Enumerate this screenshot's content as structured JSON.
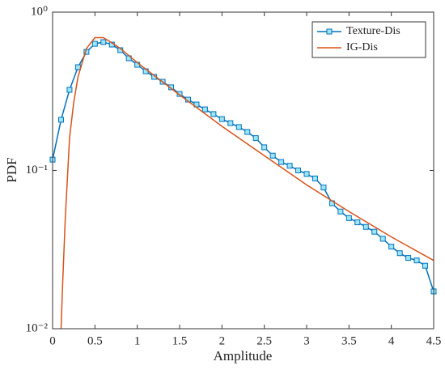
{
  "chart_data": {
    "type": "line",
    "xlabel": "Amplitude",
    "ylabel": "PDF",
    "log_y": true,
    "grid": false,
    "legend": "upper right",
    "xlim": [
      0,
      4.5
    ],
    "xticks": [
      0,
      0.5,
      1,
      1.5,
      2,
      2.5,
      3,
      3.5,
      4,
      4.5
    ],
    "ylim": [
      0.01,
      1
    ],
    "yticks": [
      {
        "value": 1,
        "label": "10⁰"
      },
      {
        "value": 0.1,
        "label": "10⁻¹"
      },
      {
        "value": 0.01,
        "label": "10⁻²"
      }
    ],
    "series": [
      {
        "name": "Texture-Dis",
        "color": "#0072BD",
        "marker": "square",
        "x": [
          0,
          0.1,
          0.2,
          0.3,
          0.4,
          0.5,
          0.6,
          0.7,
          0.8,
          0.9,
          1,
          1.1,
          1.2,
          1.3,
          1.4,
          1.5,
          1.6,
          1.7,
          1.8,
          1.9,
          2,
          2.1,
          2.2,
          2.3,
          2.4,
          2.5,
          2.6,
          2.7,
          2.8,
          2.9,
          3,
          3.1,
          3.2,
          3.3,
          3.4,
          3.5,
          3.6,
          3.7,
          3.8,
          3.9,
          4,
          4.1,
          4.2,
          4.3,
          4.4,
          4.5
        ],
        "values": [
          0.117,
          0.209,
          0.323,
          0.449,
          0.561,
          0.631,
          0.647,
          0.624,
          0.575,
          0.511,
          0.465,
          0.423,
          0.39,
          0.363,
          0.335,
          0.304,
          0.28,
          0.261,
          0.243,
          0.227,
          0.211,
          0.199,
          0.188,
          0.175,
          0.16,
          0.14,
          0.124,
          0.113,
          0.107,
          0.1,
          0.095,
          0.089,
          0.078,
          0.062,
          0.055,
          0.05,
          0.047,
          0.044,
          0.041,
          0.037,
          0.033,
          0.03,
          0.028,
          0.027,
          0.025,
          0.0172
        ]
      },
      {
        "name": "IG-Dis",
        "color": "#D95319",
        "marker": "none",
        "x": [
          0.1,
          0.12,
          0.15,
          0.2,
          0.25,
          0.3,
          0.4,
          0.5,
          0.6,
          0.7,
          0.8,
          1,
          1.5,
          2,
          2.5,
          3,
          3.5,
          4,
          4.5
        ],
        "values": [
          0.01,
          0.02,
          0.05,
          0.16,
          0.27,
          0.39,
          0.59,
          0.69,
          0.69,
          0.64,
          0.59,
          0.48,
          0.3,
          0.19,
          0.124,
          0.081,
          0.055,
          0.038,
          0.027
        ]
      }
    ]
  }
}
